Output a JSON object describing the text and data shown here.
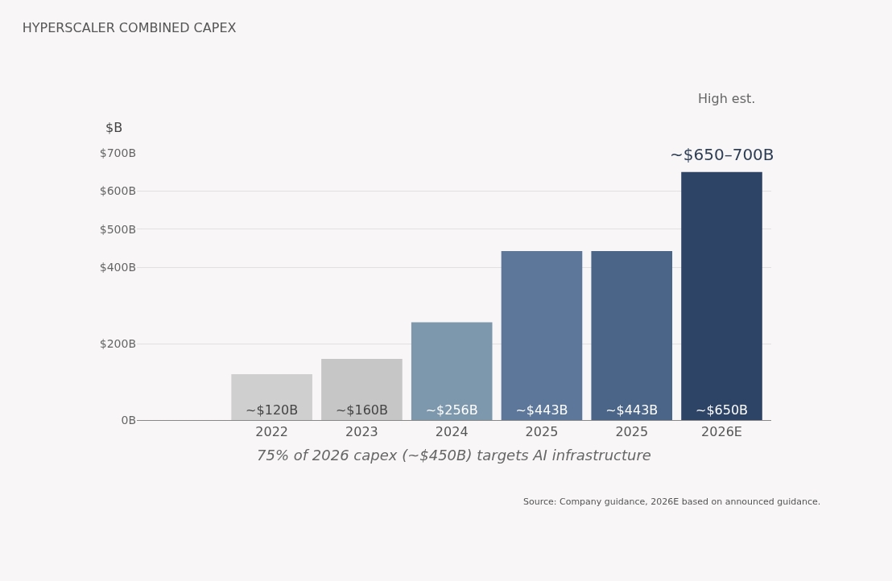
{
  "chart_data": {
    "type": "bar",
    "title": "HYPERSCALER COMBINED CAPEX",
    "ylabel": "$B",
    "categories": [
      "2022",
      "2023",
      "2024",
      "2025",
      "2025",
      "2026E"
    ],
    "values": [
      120,
      160,
      256,
      443,
      443,
      650
    ],
    "colors": [
      "#cfcfcf",
      "#c6c6c6",
      "#7d97ac",
      "#5c7799",
      "#4b6589",
      "#2e4467"
    ],
    "value_labels": [
      "~$120B",
      "~$160B",
      "~$256B",
      "~$443B",
      "~$443B",
      "~$650B"
    ],
    "ylim": [
      0,
      700
    ],
    "yticks": [
      {
        "value": 0,
        "label": "0B"
      },
      {
        "value": 200,
        "label": "$200B"
      },
      {
        "value": 400,
        "label": "$400B"
      },
      {
        "value": 500,
        "label": "$500B"
      },
      {
        "value": 600,
        "label": "$600B"
      },
      {
        "value": 700,
        "label": "$700B"
      }
    ],
    "grid": "y",
    "annotations": [
      {
        "text": "~$650–700B",
        "x": "2026E",
        "y": 650
      },
      "High est.",
      "75% of 2026 capex (~$450B) targets AI infrastructure",
      "Source: Company guidance, 2026E based on announced guidance."
    ]
  }
}
